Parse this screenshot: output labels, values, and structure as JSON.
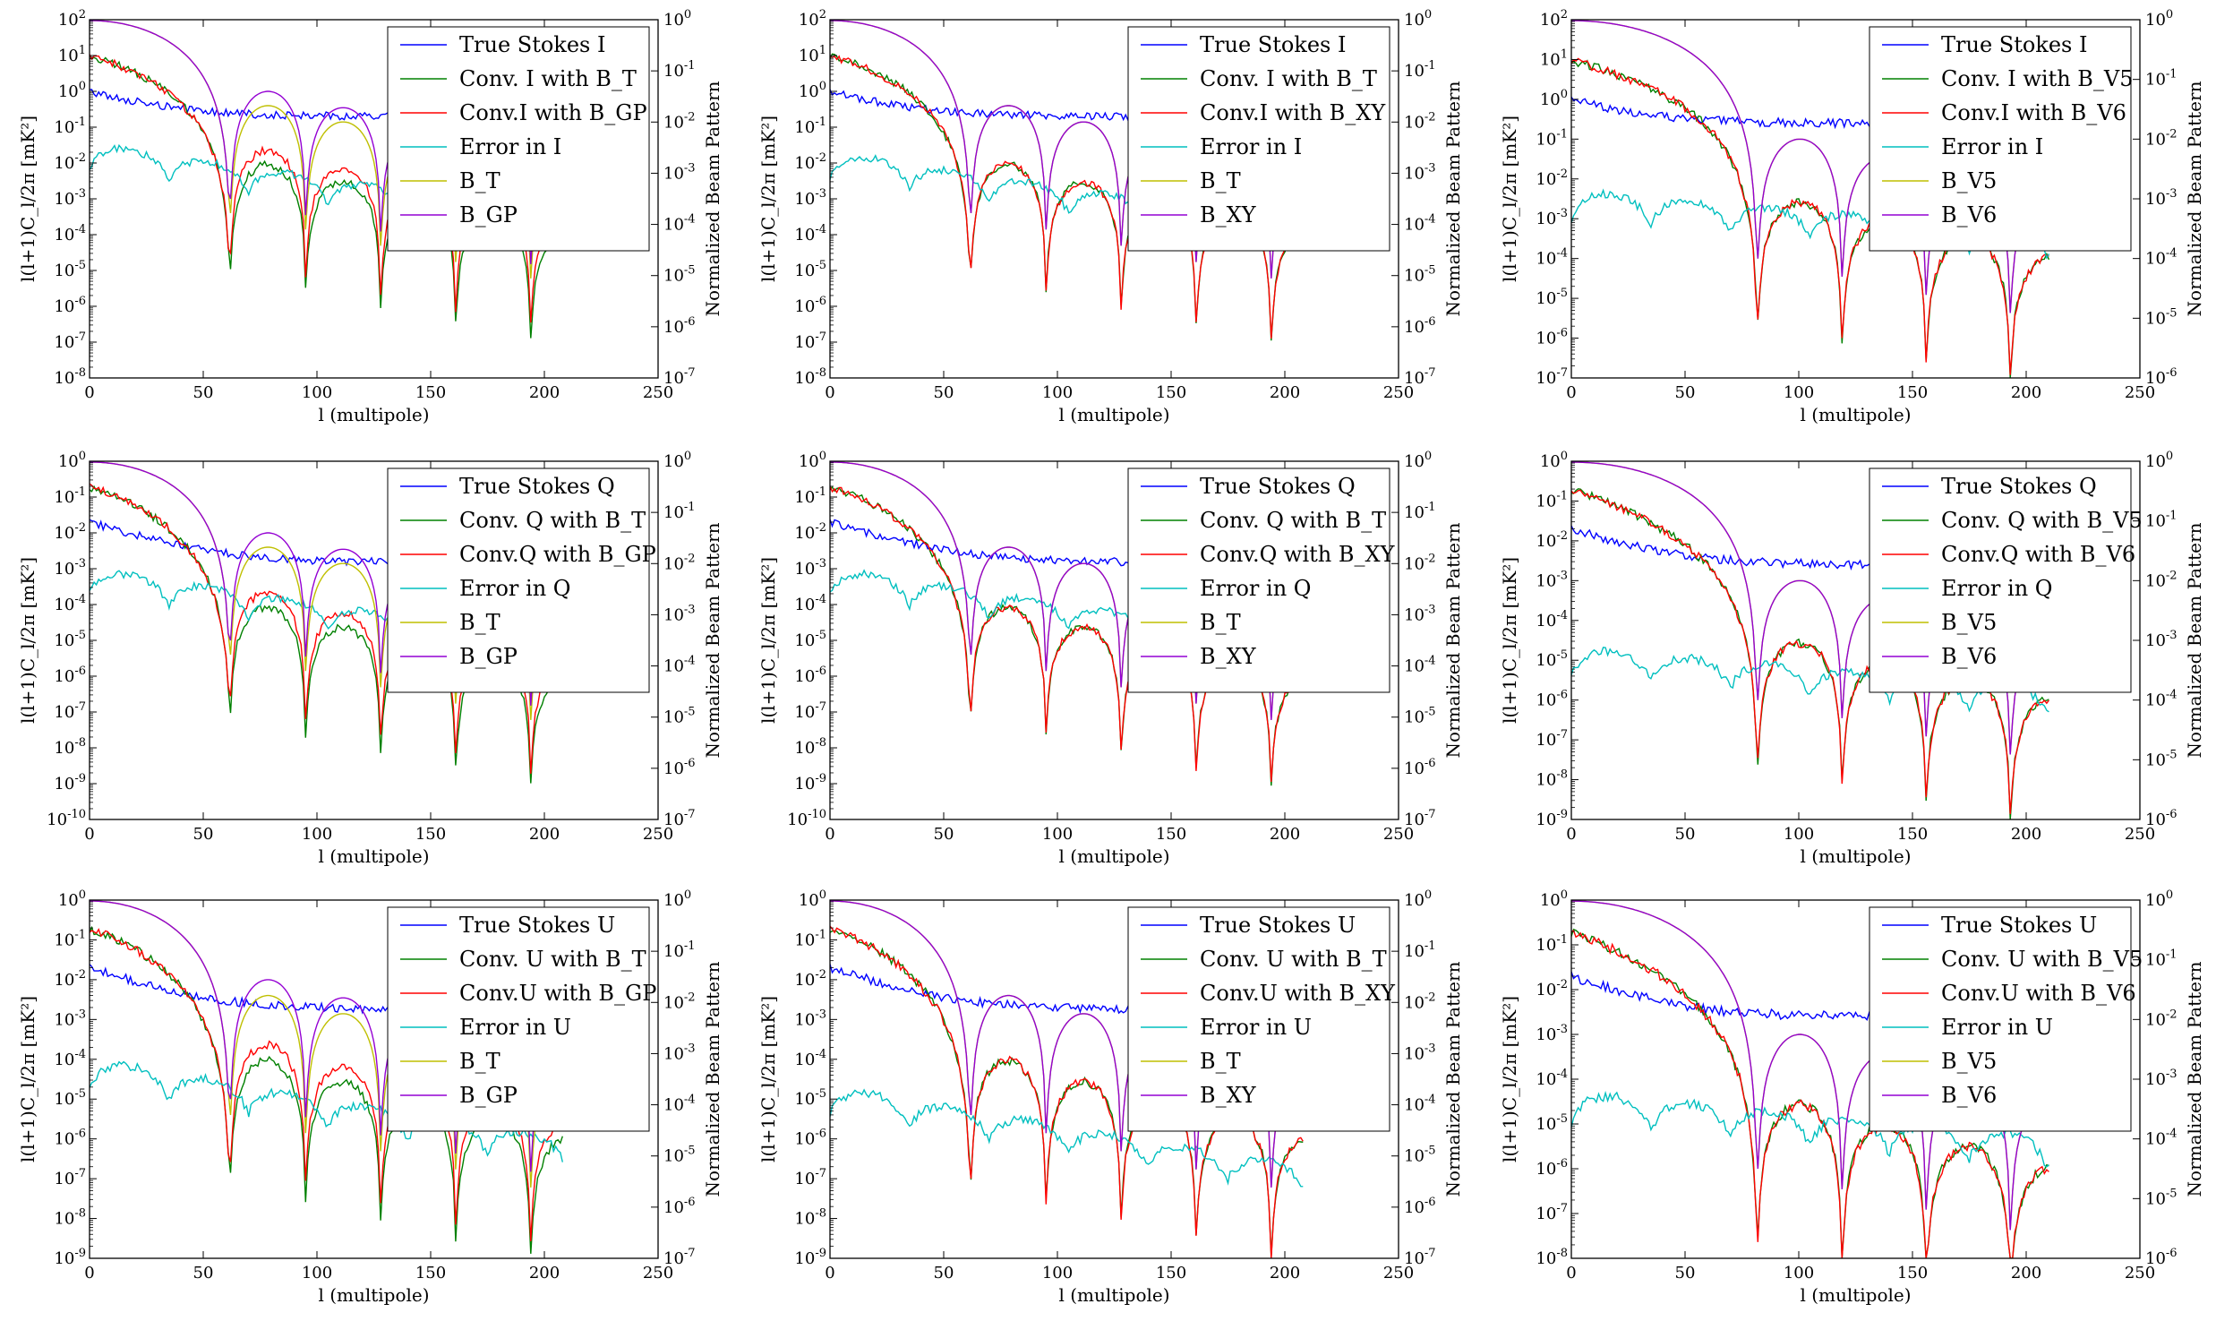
{
  "colors": {
    "true": "#0000ff",
    "convA": "#008000",
    "convB": "#ff0000",
    "error": "#00bfbf",
    "beamA": "#bfbf00",
    "beamB": "#9400d3"
  },
  "chart_data": [
    {
      "id": "p00",
      "type": "line",
      "ylabel": "l(l+1)C_l/2π [mK²]",
      "ylabel2": "Normalized Beam Pattern",
      "xlabel": "l (multipole)",
      "xlim": [
        0,
        250
      ],
      "xticks": [
        0,
        50,
        100,
        150,
        200,
        250
      ],
      "ylim_exp": [
        -8,
        2
      ],
      "y2lim_exp": [
        -7,
        0
      ],
      "legend": [
        "True Stokes I",
        "Conv. I with B_T",
        "Conv.I with B_GP",
        "Error in I",
        "B_T",
        "B_GP"
      ],
      "params": {
        "first_null": 62,
        "spacing": 33,
        "beamA_side": 0.004,
        "beamB_side": 0.01,
        "true_start": 1.0,
        "true_level": 0.2,
        "conv_start": 9.0,
        "err_start": 0.035,
        "err_floor_decay": 1.0
      }
    },
    {
      "id": "p01",
      "type": "line",
      "ylabel": "l(l+1)C_l/2π [mK²]",
      "ylabel2": "Normalized Beam Pattern",
      "xlabel": "l (multipole)",
      "xlim": [
        0,
        250
      ],
      "xticks": [
        0,
        50,
        100,
        150,
        200,
        250
      ],
      "ylim_exp": [
        -8,
        2
      ],
      "y2lim_exp": [
        -7,
        0
      ],
      "legend": [
        "True Stokes I",
        "Conv. I with B_T",
        "Conv.I with B_XY",
        "Error in I",
        "B_T",
        "B_XY"
      ],
      "params": {
        "first_null": 62,
        "spacing": 33,
        "beamA_side": 0.004,
        "beamB_side": 0.004,
        "true_start": 1.0,
        "true_level": 0.2,
        "conv_start": 9.0,
        "err_start": 0.02,
        "err_floor_decay": 1.0
      }
    },
    {
      "id": "p02",
      "type": "line",
      "ylabel": "l(l+1)C_l/2π [mK²]",
      "ylabel2": "Normalized Beam Pattern",
      "xlabel": "l (multipole)",
      "xlim": [
        0,
        250
      ],
      "xticks": [
        0,
        50,
        100,
        150,
        200,
        250
      ],
      "ylim_exp": [
        -7,
        2
      ],
      "y2lim_exp": [
        -6,
        0
      ],
      "legend": [
        "True Stokes I",
        "Conv. I with B_V5",
        "Conv.I with B_V6",
        "Error in I",
        "B_V5",
        "B_V6"
      ],
      "params": {
        "first_null": 82,
        "spacing": 37,
        "beamA_side": 0.001,
        "beamB_side": 0.001,
        "true_start": 1.0,
        "true_level": 0.25,
        "conv_start": 9.0,
        "err_start": 0.005,
        "err_floor_decay": 0.5
      }
    },
    {
      "id": "p10",
      "type": "line",
      "ylabel": "l(l+1)C_l/2π [mK²]",
      "ylabel2": "Normalized Beam Pattern",
      "xlabel": "l (multipole)",
      "xlim": [
        0,
        250
      ],
      "xticks": [
        0,
        50,
        100,
        150,
        200,
        250
      ],
      "ylim_exp": [
        -10,
        0
      ],
      "y2lim_exp": [
        -7,
        0
      ],
      "legend": [
        "True Stokes Q",
        "Conv. Q with B_T",
        "Conv.Q with B_GP",
        "Error in  Q",
        "B_T",
        "B_GP"
      ],
      "params": {
        "first_null": 62,
        "spacing": 33,
        "beamA_side": 0.004,
        "beamB_side": 0.01,
        "true_start": 0.02,
        "true_level": 0.0015,
        "conv_start": 0.2,
        "err_start": 0.001,
        "err_floor_decay": 1.0
      }
    },
    {
      "id": "p11",
      "type": "line",
      "ylabel": "l(l+1)C_l/2π [mK²]",
      "ylabel2": "Normalized Beam Pattern",
      "xlabel": "l (multipole)",
      "xlim": [
        0,
        250
      ],
      "xticks": [
        0,
        50,
        100,
        150,
        200,
        250
      ],
      "ylim_exp": [
        -10,
        0
      ],
      "y2lim_exp": [
        -7,
        0
      ],
      "legend": [
        "True Stokes Q",
        "Conv. Q with B_T",
        "Conv.Q with B_XY",
        "Error in  Q",
        "B_T",
        "B_XY"
      ],
      "params": {
        "first_null": 62,
        "spacing": 33,
        "beamA_side": 0.004,
        "beamB_side": 0.004,
        "true_start": 0.02,
        "true_level": 0.0015,
        "conv_start": 0.2,
        "err_start": 0.001,
        "err_floor_decay": 1.0
      }
    },
    {
      "id": "p12",
      "type": "line",
      "ylabel": "l(l+1)C_l/2π [mK²]",
      "ylabel2": "Normalized Beam Pattern",
      "xlabel": "l (multipole)",
      "xlim": [
        0,
        250
      ],
      "xticks": [
        0,
        50,
        100,
        150,
        200,
        250
      ],
      "ylim_exp": [
        -9,
        0
      ],
      "y2lim_exp": [
        -6,
        0
      ],
      "legend": [
        "True Stokes Q",
        "Conv. Q with B_V5",
        "Conv.Q with B_V6",
        "Error in  Q",
        "B_V5",
        "B_V6"
      ],
      "params": {
        "first_null": 82,
        "spacing": 37,
        "beamA_side": 0.001,
        "beamB_side": 0.001,
        "true_start": 0.02,
        "true_level": 0.0025,
        "conv_start": 0.2,
        "err_start": 2e-05,
        "err_floor_decay": 0.5
      }
    },
    {
      "id": "p20",
      "type": "line",
      "ylabel": "l(l+1)C_l/2π [mK²]",
      "ylabel2": "Normalized Beam Pattern",
      "xlabel": "l (multipole)",
      "xlim": [
        0,
        250
      ],
      "xticks": [
        0,
        50,
        100,
        150,
        200,
        250
      ],
      "ylim_exp": [
        -9,
        0
      ],
      "y2lim_exp": [
        -7,
        0
      ],
      "legend": [
        "True Stokes U",
        "Conv. U with B_T",
        "Conv.U with B_GP",
        "Error in  U",
        "B_T",
        "B_GP"
      ],
      "params": {
        "first_null": 62,
        "spacing": 33,
        "beamA_side": 0.004,
        "beamB_side": 0.01,
        "true_start": 0.02,
        "true_level": 0.0018,
        "conv_start": 0.2,
        "err_start": 0.0001,
        "err_floor_decay": 1.0
      }
    },
    {
      "id": "p21",
      "type": "line",
      "ylabel": "l(l+1)C_l/2π [mK²]",
      "ylabel2": "Normalized Beam Pattern",
      "xlabel": "l (multipole)",
      "xlim": [
        0,
        250
      ],
      "xticks": [
        0,
        50,
        100,
        150,
        200,
        250
      ],
      "ylim_exp": [
        -9,
        0
      ],
      "y2lim_exp": [
        -7,
        0
      ],
      "legend": [
        "True Stokes U",
        "Conv. U with B_T",
        "Conv.U with B_XY",
        "Error in  U",
        "B_T",
        "B_XY"
      ],
      "params": {
        "first_null": 62,
        "spacing": 33,
        "beamA_side": 0.004,
        "beamB_side": 0.004,
        "true_start": 0.02,
        "true_level": 0.0018,
        "conv_start": 0.2,
        "err_start": 2e-05,
        "err_floor_decay": 1.0
      }
    },
    {
      "id": "p22",
      "type": "line",
      "ylabel": "l(l+1)C_l/2π [mK²]",
      "ylabel2": "Normalized Beam Pattern",
      "xlabel": "l (multipole)",
      "xlim": [
        0,
        250
      ],
      "xticks": [
        0,
        50,
        100,
        150,
        200,
        250
      ],
      "ylim_exp": [
        -8,
        0
      ],
      "y2lim_exp": [
        -6,
        0
      ],
      "legend": [
        "True Stokes U",
        "Conv. U with B_V5",
        "Conv.U with B_V6",
        "Error in  U",
        "B_V5",
        "B_V6"
      ],
      "params": {
        "first_null": 82,
        "spacing": 37,
        "beamA_side": 0.001,
        "beamB_side": 0.001,
        "true_start": 0.02,
        "true_level": 0.0025,
        "conv_start": 0.2,
        "err_start": 5e-05,
        "err_floor_decay": 0.5
      }
    }
  ]
}
